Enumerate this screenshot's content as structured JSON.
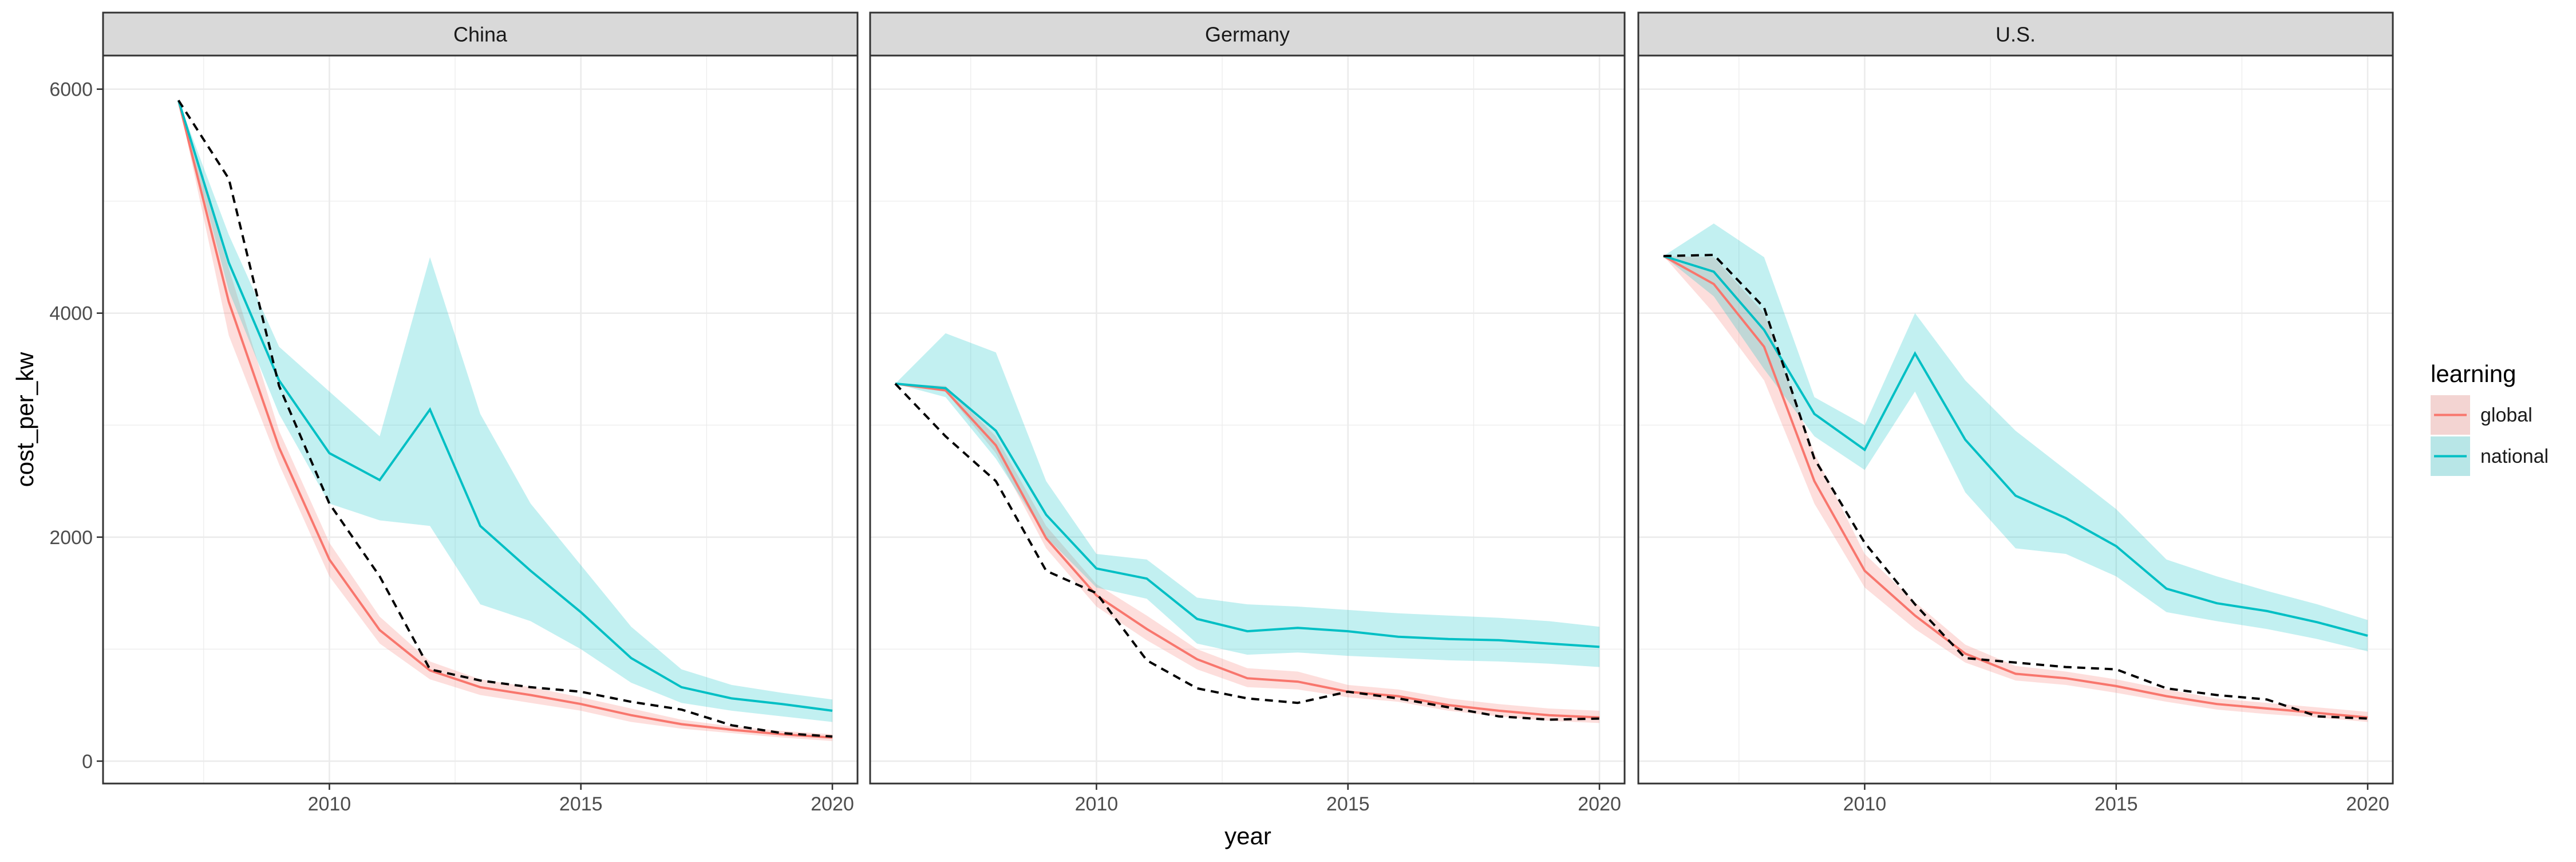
{
  "chart_data": {
    "type": "line",
    "facet_by": "country",
    "xlabel": "year",
    "ylabel": "cost_per_kw",
    "xlim": [
      2005.5,
      2020.5
    ],
    "ylim": [
      -200,
      6300
    ],
    "x_ticks": [
      2010,
      2015,
      2020
    ],
    "y_ticks": [
      0,
      2000,
      4000,
      6000
    ],
    "grid": true,
    "legend": {
      "title": "learning",
      "position": "right",
      "entries": [
        {
          "label": "global",
          "color": "#F8766D",
          "fill": "#F8766D"
        },
        {
          "label": "national",
          "color": "#00BFC4",
          "fill": "#00BFC4"
        }
      ]
    },
    "colors": {
      "global": "#F8766D",
      "national": "#00BFC4",
      "observed": "#000000",
      "strip": "#d9d9d9",
      "grid": "#ebebeb"
    },
    "panels": [
      {
        "title": "China",
        "observed": {
          "x": [
            2007,
            2008,
            2009,
            2010,
            2011,
            2012,
            2013,
            2014,
            2015,
            2016,
            2017,
            2018,
            2019,
            2020
          ],
          "y": [
            5900,
            5200,
            3350,
            2300,
            1650,
            820,
            720,
            660,
            620,
            530,
            460,
            320,
            250,
            220
          ]
        },
        "series": [
          {
            "name": "global",
            "x": [
              2007,
              2008,
              2009,
              2010,
              2011,
              2012,
              2013,
              2014,
              2015,
              2016,
              2017,
              2018,
              2019,
              2020
            ],
            "y": [
              5900,
              4100,
              2800,
              1800,
              1170,
              810,
              660,
              590,
              510,
              410,
              330,
              280,
              240,
              210
            ],
            "lower": [
              5900,
              3800,
              2650,
              1650,
              1050,
              730,
              590,
              520,
              450,
              350,
              290,
              250,
              210,
              180
            ],
            "upper": [
              5900,
              4400,
              2950,
              1950,
              1290,
              890,
              730,
              660,
              570,
              470,
              370,
              310,
              270,
              240
            ]
          },
          {
            "name": "national",
            "x": [
              2007,
              2008,
              2009,
              2010,
              2011,
              2012,
              2013,
              2014,
              2015,
              2016,
              2017,
              2018,
              2019,
              2020
            ],
            "y": [
              5900,
              4450,
              3400,
              2750,
              2510,
              3140,
              2100,
              1700,
              1330,
              920,
              660,
              560,
              510,
              450
            ],
            "lower": [
              5900,
              4200,
              3100,
              2300,
              2150,
              2100,
              1400,
              1250,
              1000,
              700,
              520,
              450,
              400,
              350
            ],
            "upper": [
              5900,
              4700,
              3700,
              3300,
              2900,
              4500,
              3100,
              2300,
              1750,
              1200,
              820,
              680,
              610,
              550
            ]
          }
        ]
      },
      {
        "title": "Germany",
        "observed": {
          "x": [
            2006,
            2007,
            2008,
            2009,
            2010,
            2011,
            2012,
            2013,
            2014,
            2015,
            2016,
            2017,
            2018,
            2019,
            2020
          ],
          "y": [
            3370,
            2900,
            2500,
            1700,
            1500,
            900,
            650,
            560,
            520,
            620,
            560,
            480,
            400,
            370,
            380
          ]
        },
        "series": [
          {
            "name": "global",
            "x": [
              2006,
              2007,
              2008,
              2009,
              2010,
              2011,
              2012,
              2013,
              2014,
              2015,
              2016,
              2017,
              2018,
              2019,
              2020
            ],
            "y": [
              3370,
              3310,
              2820,
              1990,
              1480,
              1180,
              910,
              740,
              710,
              620,
              580,
              500,
              450,
              410,
              390
            ],
            "lower": [
              3370,
              3300,
              2750,
              1900,
              1380,
              1080,
              820,
              660,
              640,
              570,
              530,
              450,
              400,
              360,
              340
            ],
            "upper": [
              3370,
              3350,
              2900,
              2100,
              1580,
              1300,
              1000,
              830,
              800,
              680,
              640,
              560,
              510,
              470,
              450
            ]
          },
          {
            "name": "national",
            "x": [
              2006,
              2007,
              2008,
              2009,
              2010,
              2011,
              2012,
              2013,
              2014,
              2015,
              2016,
              2017,
              2018,
              2019,
              2020
            ],
            "y": [
              3370,
              3330,
              2950,
              2200,
              1720,
              1630,
              1270,
              1160,
              1190,
              1160,
              1110,
              1090,
              1080,
              1050,
              1020
            ],
            "lower": [
              3370,
              3250,
              2700,
              2000,
              1550,
              1450,
              1050,
              950,
              970,
              940,
              920,
              900,
              890,
              870,
              840
            ],
            "upper": [
              3370,
              3820,
              3650,
              2500,
              1850,
              1800,
              1460,
              1400,
              1380,
              1350,
              1320,
              1300,
              1280,
              1250,
              1200
            ]
          }
        ]
      },
      {
        "title": "U.S.",
        "observed": {
          "x": [
            2006,
            2007,
            2008,
            2009,
            2010,
            2011,
            2012,
            2013,
            2014,
            2015,
            2016,
            2017,
            2018,
            2019,
            2020
          ],
          "y": [
            4510,
            4520,
            4050,
            2700,
            1950,
            1400,
            920,
            880,
            840,
            820,
            650,
            590,
            550,
            400,
            380
          ]
        },
        "series": [
          {
            "name": "global",
            "x": [
              2006,
              2007,
              2008,
              2009,
              2010,
              2011,
              2012,
              2013,
              2014,
              2015,
              2016,
              2017,
              2018,
              2019,
              2020
            ],
            "y": [
              4510,
              4260,
              3700,
              2500,
              1700,
              1300,
              960,
              780,
              740,
              670,
              580,
              510,
              470,
              430,
              390
            ],
            "lower": [
              4510,
              4000,
              3400,
              2300,
              1550,
              1180,
              880,
              720,
              680,
              610,
              530,
              460,
              420,
              390,
              350
            ],
            "upper": [
              4510,
              4500,
              4000,
              2750,
              1850,
              1420,
              1040,
              850,
              800,
              730,
              640,
              560,
              520,
              480,
              440
            ]
          },
          {
            "name": "national",
            "x": [
              2006,
              2007,
              2008,
              2009,
              2010,
              2011,
              2012,
              2013,
              2014,
              2015,
              2016,
              2017,
              2018,
              2019,
              2020
            ],
            "y": [
              4510,
              4370,
              3850,
              3100,
              2780,
              3640,
              2870,
              2370,
              2170,
              1920,
              1540,
              1410,
              1340,
              1240,
              1120
            ],
            "lower": [
              4510,
              4150,
              3500,
              2900,
              2600,
              3300,
              2400,
              1900,
              1850,
              1650,
              1330,
              1250,
              1180,
              1090,
              980
            ],
            "upper": [
              4510,
              4800,
              4500,
              3250,
              3000,
              4000,
              3400,
              2950,
              2600,
              2250,
              1800,
              1650,
              1520,
              1400,
              1260
            ]
          }
        ]
      }
    ]
  }
}
